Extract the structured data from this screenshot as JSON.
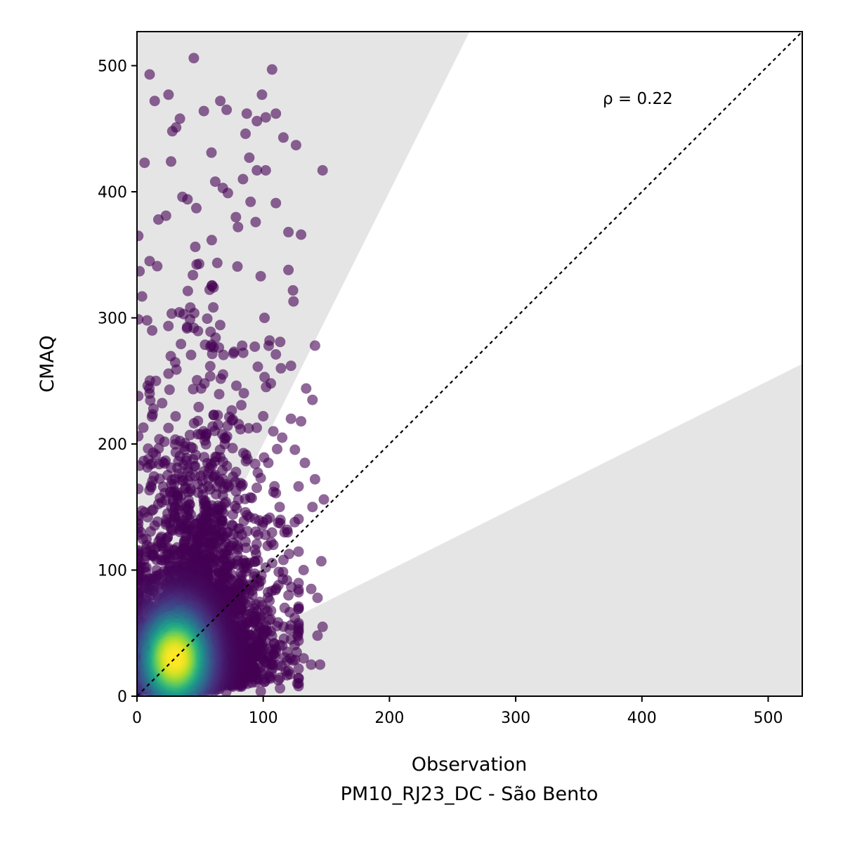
{
  "chart_data": {
    "type": "scatter",
    "title": "",
    "xlabel": "Observation",
    "xlabel_sub": "PM10_RJ23_DC - São Bento",
    "ylabel": "CMAQ",
    "xlim": [
      0,
      527
    ],
    "ylim": [
      0,
      527
    ],
    "xticks": [
      0,
      100,
      200,
      300,
      400,
      500
    ],
    "yticks": [
      0,
      100,
      200,
      300,
      400,
      500
    ],
    "annotation": "ρ = 0.22",
    "grid": false,
    "identity_line": true,
    "shaded_band_slopes": [
      2.0,
      0.5
    ],
    "colormap": "viridis",
    "colors": {
      "shade": "#e5e5e5",
      "low_density": "#440154",
      "high_density": "#fde725"
    },
    "points": [
      [
        1,
        365
      ],
      [
        10,
        493
      ],
      [
        14,
        472
      ],
      [
        6,
        423
      ],
      [
        25,
        477
      ],
      [
        45,
        506
      ],
      [
        34,
        458
      ],
      [
        53,
        464
      ],
      [
        66,
        472
      ],
      [
        71,
        465
      ],
      [
        87,
        462
      ],
      [
        95,
        456
      ],
      [
        99,
        477
      ],
      [
        107,
        497
      ],
      [
        102,
        459
      ],
      [
        110,
        462
      ],
      [
        116,
        443
      ],
      [
        126,
        437
      ],
      [
        147,
        417
      ],
      [
        130,
        366
      ],
      [
        120,
        368
      ],
      [
        120,
        338
      ],
      [
        124,
        313
      ],
      [
        141,
        278
      ],
      [
        122,
        262
      ],
      [
        134,
        244
      ],
      [
        139,
        235
      ],
      [
        122,
        220
      ],
      [
        130,
        218
      ],
      [
        133,
        185
      ],
      [
        141,
        172
      ],
      [
        148,
        156
      ],
      [
        139,
        150
      ],
      [
        125,
        138
      ],
      [
        119,
        132
      ],
      [
        146,
        107
      ],
      [
        132,
        100
      ],
      [
        138,
        85
      ],
      [
        143,
        78
      ],
      [
        147,
        55
      ],
      [
        143,
        48
      ],
      [
        138,
        25
      ],
      [
        145,
        25
      ],
      [
        132,
        30
      ],
      [
        115,
        40
      ],
      [
        28,
        448
      ],
      [
        31,
        451
      ],
      [
        27,
        424
      ],
      [
        36,
        396
      ],
      [
        40,
        394
      ],
      [
        47,
        387
      ],
      [
        59,
        431
      ],
      [
        62,
        408
      ],
      [
        68,
        403
      ],
      [
        72,
        399
      ],
      [
        86,
        446
      ],
      [
        89,
        427
      ],
      [
        95,
        417
      ],
      [
        84,
        410
      ],
      [
        90,
        392
      ],
      [
        110,
        391
      ],
      [
        94,
        376
      ],
      [
        80,
        372
      ],
      [
        102,
        417
      ],
      [
        17,
        378
      ],
      [
        23,
        381
      ],
      [
        2,
        337
      ],
      [
        10,
        345
      ],
      [
        16,
        341
      ],
      [
        4,
        317
      ],
      [
        8,
        298
      ],
      [
        12,
        290
      ],
      [
        15,
        250
      ],
      [
        10,
        240
      ],
      [
        13,
        228
      ],
      [
        5,
        213
      ],
      [
        9,
        188
      ],
      [
        11,
        167
      ],
      [
        4,
        147
      ],
      [
        3,
        130
      ],
      [
        6,
        102
      ],
      [
        98,
        333
      ],
      [
        101,
        300
      ],
      [
        105,
        282
      ],
      [
        110,
        271
      ],
      [
        114,
        260
      ],
      [
        106,
        248
      ],
      [
        100,
        222
      ],
      [
        108,
        210
      ],
      [
        111,
        196
      ],
      [
        104,
        185
      ],
      [
        98,
        173
      ],
      [
        110,
        161
      ],
      [
        113,
        150
      ],
      [
        103,
        140
      ],
      [
        96,
        128
      ],
      [
        108,
        120
      ],
      [
        116,
        108
      ],
      [
        102,
        102
      ],
      [
        95,
        93
      ],
      [
        112,
        88
      ],
      [
        120,
        80
      ],
      [
        117,
        70
      ],
      [
        125,
        62
      ],
      [
        128,
        52
      ],
      [
        122,
        45
      ],
      [
        110,
        35
      ],
      [
        100,
        20
      ],
      [
        90,
        15
      ],
      [
        120,
        20
      ],
      [
        127,
        10
      ]
    ]
  }
}
